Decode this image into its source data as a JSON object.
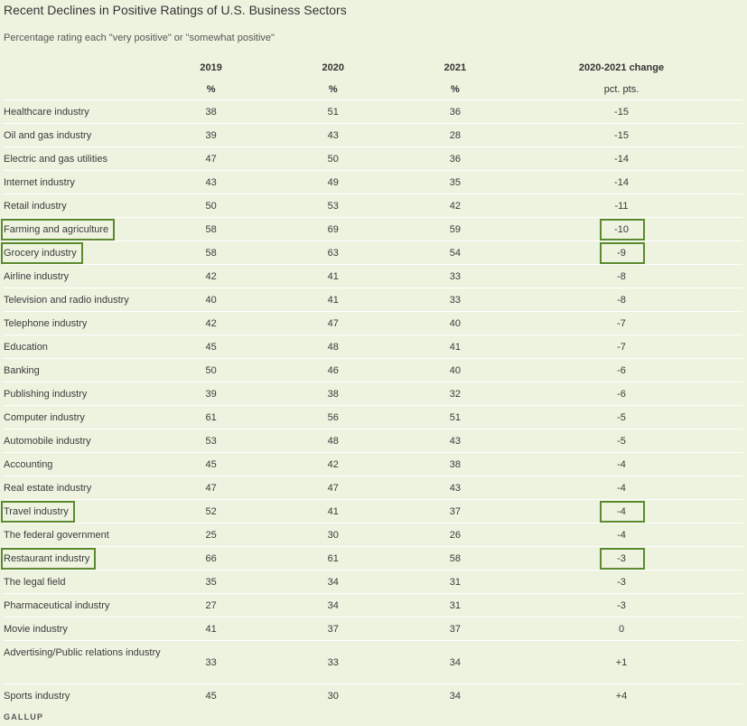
{
  "chart_data": {
    "type": "table",
    "title": "Recent Declines in Positive Ratings of U.S. Business Sectors",
    "subtitle": "Percentage rating each \"very positive\" or \"somewhat positive\"",
    "columns": [
      "2019",
      "2020",
      "2021",
      "2020-2021 change"
    ],
    "units": [
      "%",
      "%",
      "%",
      "pct. pts."
    ],
    "rows": [
      {
        "label": "Healthcare industry",
        "y2019": "38",
        "y2020": "51",
        "y2021": "36",
        "change": "-15"
      },
      {
        "label": "Oil and gas industry",
        "y2019": "39",
        "y2020": "43",
        "y2021": "28",
        "change": "-15"
      },
      {
        "label": "Electric and gas utilities",
        "y2019": "47",
        "y2020": "50",
        "y2021": "36",
        "change": "-14"
      },
      {
        "label": "Internet industry",
        "y2019": "43",
        "y2020": "49",
        "y2021": "35",
        "change": "-14"
      },
      {
        "label": "Retail industry",
        "y2019": "50",
        "y2020": "53",
        "y2021": "42",
        "change": "-11"
      },
      {
        "label": "Farming and agriculture",
        "y2019": "58",
        "y2020": "69",
        "y2021": "59",
        "change": "-10",
        "highlight": true
      },
      {
        "label": "Grocery industry",
        "y2019": "58",
        "y2020": "63",
        "y2021": "54",
        "change": "-9",
        "highlight": true
      },
      {
        "label": "Airline industry",
        "y2019": "42",
        "y2020": "41",
        "y2021": "33",
        "change": "-8"
      },
      {
        "label": "Television and radio industry",
        "y2019": "40",
        "y2020": "41",
        "y2021": "33",
        "change": "-8"
      },
      {
        "label": "Telephone industry",
        "y2019": "42",
        "y2020": "47",
        "y2021": "40",
        "change": "-7"
      },
      {
        "label": "Education",
        "y2019": "45",
        "y2020": "48",
        "y2021": "41",
        "change": "-7"
      },
      {
        "label": "Banking",
        "y2019": "50",
        "y2020": "46",
        "y2021": "40",
        "change": "-6"
      },
      {
        "label": "Publishing industry",
        "y2019": "39",
        "y2020": "38",
        "y2021": "32",
        "change": "-6"
      },
      {
        "label": "Computer industry",
        "y2019": "61",
        "y2020": "56",
        "y2021": "51",
        "change": "-5"
      },
      {
        "label": "Automobile industry",
        "y2019": "53",
        "y2020": "48",
        "y2021": "43",
        "change": "-5"
      },
      {
        "label": "Accounting",
        "y2019": "45",
        "y2020": "42",
        "y2021": "38",
        "change": "-4"
      },
      {
        "label": "Real estate industry",
        "y2019": "47",
        "y2020": "47",
        "y2021": "43",
        "change": "-4"
      },
      {
        "label": "Travel industry",
        "y2019": "52",
        "y2020": "41",
        "y2021": "37",
        "change": "-4",
        "highlight": true
      },
      {
        "label": "The federal government",
        "y2019": "25",
        "y2020": "30",
        "y2021": "26",
        "change": "-4"
      },
      {
        "label": "Restaurant industry",
        "y2019": "66",
        "y2020": "61",
        "y2021": "58",
        "change": "-3",
        "highlight": true
      },
      {
        "label": "The legal field",
        "y2019": "35",
        "y2020": "34",
        "y2021": "31",
        "change": "-3"
      },
      {
        "label": "Pharmaceutical industry",
        "y2019": "27",
        "y2020": "34",
        "y2021": "31",
        "change": "-3"
      },
      {
        "label": "Movie industry",
        "y2019": "41",
        "y2020": "37",
        "y2021": "37",
        "change": "0"
      },
      {
        "label": "Advertising/Public relations industry",
        "y2019": "33",
        "y2020": "33",
        "y2021": "34",
        "change": "+1"
      },
      {
        "label": "Sports industry",
        "y2019": "45",
        "y2020": "30",
        "y2021": "34",
        "change": "+4"
      }
    ],
    "highlight_color": "#5b8a2e"
  },
  "footer": "GALLUP"
}
